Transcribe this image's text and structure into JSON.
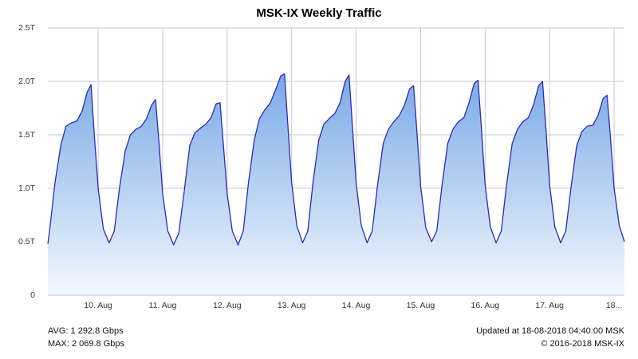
{
  "chart_data": {
    "type": "area",
    "title": "MSK-IX Weekly Traffic",
    "x": [
      9.22,
      9.25,
      9.33,
      9.42,
      9.5,
      9.58,
      9.67,
      9.75,
      9.83,
      9.89,
      9.94,
      10.0,
      10.08,
      10.17,
      10.25,
      10.33,
      10.42,
      10.5,
      10.58,
      10.67,
      10.75,
      10.83,
      10.89,
      10.94,
      11.0,
      11.08,
      11.17,
      11.25,
      11.33,
      11.42,
      11.5,
      11.58,
      11.67,
      11.75,
      11.83,
      11.89,
      11.94,
      12.0,
      12.08,
      12.17,
      12.25,
      12.33,
      12.42,
      12.5,
      12.58,
      12.67,
      12.75,
      12.83,
      12.89,
      12.94,
      13.0,
      13.08,
      13.17,
      13.25,
      13.33,
      13.42,
      13.5,
      13.58,
      13.67,
      13.75,
      13.83,
      13.89,
      13.94,
      14.0,
      14.08,
      14.17,
      14.25,
      14.33,
      14.42,
      14.5,
      14.58,
      14.67,
      14.75,
      14.83,
      14.89,
      14.94,
      15.0,
      15.08,
      15.17,
      15.25,
      15.33,
      15.42,
      15.5,
      15.58,
      15.67,
      15.75,
      15.83,
      15.89,
      15.94,
      16.0,
      16.08,
      16.17,
      16.25,
      16.33,
      16.42,
      16.5,
      16.58,
      16.67,
      16.75,
      16.83,
      16.89,
      16.94,
      17.0,
      17.08,
      17.17,
      17.25,
      17.33,
      17.42,
      17.5,
      17.58,
      17.67,
      17.75,
      17.83,
      17.89,
      17.94,
      18.0,
      18.08,
      18.16
    ],
    "values": [
      0.48,
      0.62,
      1.05,
      1.4,
      1.58,
      1.61,
      1.63,
      1.72,
      1.9,
      1.97,
      1.5,
      1.0,
      0.62,
      0.49,
      0.6,
      1.0,
      1.35,
      1.5,
      1.55,
      1.58,
      1.65,
      1.78,
      1.83,
      1.45,
      0.95,
      0.6,
      0.47,
      0.58,
      0.95,
      1.4,
      1.52,
      1.56,
      1.6,
      1.66,
      1.79,
      1.8,
      1.42,
      0.95,
      0.6,
      0.47,
      0.6,
      1.05,
      1.45,
      1.65,
      1.73,
      1.8,
      1.92,
      2.05,
      2.07,
      1.6,
      1.05,
      0.65,
      0.49,
      0.6,
      1.05,
      1.45,
      1.6,
      1.65,
      1.7,
      1.8,
      2.0,
      2.06,
      1.6,
      1.05,
      0.65,
      0.49,
      0.6,
      1.02,
      1.42,
      1.55,
      1.62,
      1.68,
      1.78,
      1.93,
      1.96,
      1.55,
      1.02,
      0.63,
      0.5,
      0.6,
      1.02,
      1.42,
      1.55,
      1.62,
      1.66,
      1.8,
      1.98,
      2.01,
      1.58,
      1.03,
      0.64,
      0.49,
      0.6,
      1.02,
      1.42,
      1.55,
      1.62,
      1.66,
      1.78,
      1.96,
      2.0,
      1.58,
      1.03,
      0.64,
      0.49,
      0.6,
      1.0,
      1.4,
      1.53,
      1.58,
      1.59,
      1.68,
      1.84,
      1.87,
      1.5,
      1.0,
      0.65,
      0.5
    ],
    "color": "#2b2bb3",
    "fill_gradient": [
      "#79a9e6",
      "#f3f8fe"
    ],
    "grid_color": "#c6c6e6",
    "grid": true,
    "xlim": [
      9.22,
      18.16
    ],
    "xticks": [
      {
        "value": 10,
        "label": "10. Aug"
      },
      {
        "value": 11,
        "label": "11. Aug"
      },
      {
        "value": 12,
        "label": "12. Aug"
      },
      {
        "value": 13,
        "label": "13. Aug"
      },
      {
        "value": 14,
        "label": "14. Aug"
      },
      {
        "value": 15,
        "label": "15. Aug"
      },
      {
        "value": 16,
        "label": "16. Aug"
      },
      {
        "value": 17,
        "label": "17. Aug"
      },
      {
        "value": 18,
        "label": "18..."
      }
    ],
    "ylim": [
      0,
      2.5
    ],
    "yticks": [
      0,
      {
        "value": 0.5,
        "label": "0.5T"
      },
      {
        "value": 1.0,
        "label": "1.0T"
      },
      {
        "value": 1.5,
        "label": "1.5T"
      },
      {
        "value": 2.0,
        "label": "2.0T"
      },
      {
        "value": 2.5,
        "label": "2.5T"
      }
    ],
    "footer_left": [
      "AVG: 1 292.8 Gbps",
      "MAX: 2 069.8 Gbps"
    ],
    "footer_right": [
      "Updated at 18-08-2018 04:40:00 MSK",
      "© 2016-2018 MSK-IX"
    ]
  }
}
